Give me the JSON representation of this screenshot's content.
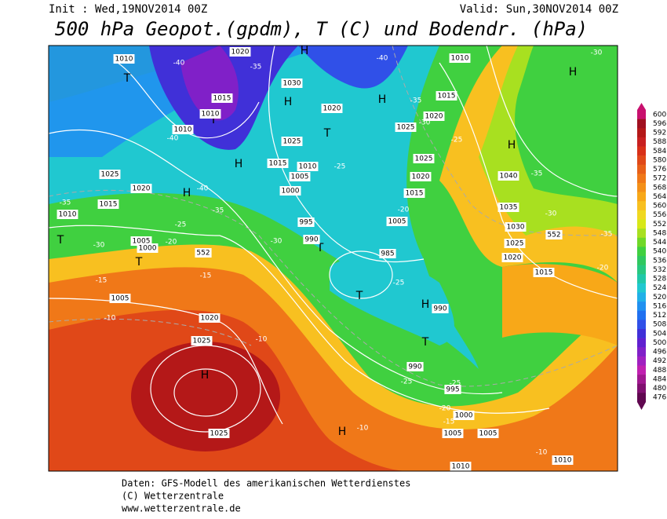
{
  "header": {
    "init": "Init : Wed,19NOV2014 00Z",
    "valid": "Valid: Sun,30NOV2014 00Z",
    "title": "500 hPa Geopot.(gpdm), T (C) und Bodendr. (hPa)"
  },
  "footer": [
    "Daten: GFS-Modell des amerikanischen Wetterdienstes",
    "(C) Wetterzentrale",
    "www.wetterzentrale.de"
  ],
  "legend": {
    "levels": [
      600,
      596,
      592,
      588,
      584,
      580,
      576,
      572,
      568,
      564,
      560,
      556,
      552,
      548,
      544,
      540,
      536,
      532,
      528,
      524,
      520,
      516,
      512,
      508,
      504,
      500,
      496,
      492,
      488,
      484,
      480,
      476
    ],
    "colors": [
      "#c8106e",
      "#a01020",
      "#b41818",
      "#c82020",
      "#d83018",
      "#e04818",
      "#e86018",
      "#f07818",
      "#f49018",
      "#f8a818",
      "#f8c020",
      "#f0d820",
      "#d8e818",
      "#a8e020",
      "#70d828",
      "#40d040",
      "#30c860",
      "#28c880",
      "#20c8a8",
      "#20c8d0",
      "#20b0e8",
      "#2090f0",
      "#2070f0",
      "#3050e8",
      "#4030d8",
      "#6020d0",
      "#8020c8",
      "#a020c0",
      "#c020b0",
      "#a01890",
      "#801070",
      "#600850"
    ]
  },
  "map": {
    "highs": [
      "H",
      "H",
      "H",
      "H",
      "H",
      "H",
      "H",
      "H",
      "H",
      "H"
    ],
    "lows": [
      "T",
      "T",
      "T",
      "T",
      "T",
      "T",
      "T",
      "T"
    ],
    "isobar_labels": [
      1010,
      1020,
      1015,
      1010,
      1010,
      1030,
      1020,
      1025,
      1015,
      1010,
      1005,
      1000,
      1025,
      1020,
      1015,
      1010,
      1005,
      1000,
      995,
      990,
      985,
      1025,
      1020,
      1015,
      1010,
      1025,
      1020,
      1015,
      1005,
      1040,
      1035,
      1030,
      1025,
      1020,
      1015,
      1005,
      1020,
      1025,
      1025,
      990,
      995,
      1000,
      1005,
      1005,
      1010,
      1010,
      990
    ],
    "temperature_labels": [
      -40,
      -35,
      -40,
      -35,
      -30,
      -25,
      -25,
      -40,
      -40,
      -35,
      -25,
      -30,
      -20,
      -15,
      -15,
      -10,
      -35,
      -30,
      -35,
      -30,
      -35,
      -20,
      -30,
      -25,
      -20,
      -25,
      -25,
      -20,
      -15,
      -10,
      -10,
      -10
    ],
    "geopotential_labels": [
      552,
      552
    ]
  }
}
